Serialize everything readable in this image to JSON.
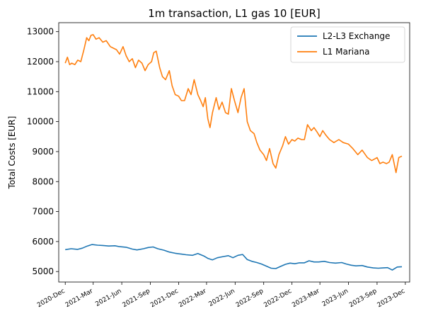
{
  "chart_data": {
    "type": "line",
    "title": "1m transaction, L1 gas 10 [EUR]",
    "xlabel": "",
    "ylabel": "Total Costs [EUR]",
    "x_tick_labels": [
      "2020-Dec",
      "2021-Mar",
      "2021-Jun",
      "2021-Sep",
      "2021-Dec",
      "2022-Mar",
      "2022-Jun",
      "2022-Sep",
      "2022-Dec",
      "2023-Mar",
      "2023-Jun",
      "2023-Sep",
      "2023-Dec"
    ],
    "y_ticks": [
      5000,
      6000,
      7000,
      8000,
      9000,
      10000,
      11000,
      12000,
      13000
    ],
    "ylim": [
      4650,
      13300
    ],
    "xlim": [
      "2020-11-10",
      "2023-12-15"
    ],
    "grid": false,
    "legend_position": "top-right",
    "series": [
      {
        "name": "L2-L3 Exchange",
        "color": "#1f77b4",
        "x": [
          "2020-12-01",
          "2020-12-20",
          "2021-01-10",
          "2021-01-25",
          "2021-02-10",
          "2021-02-25",
          "2021-03-15",
          "2021-04-01",
          "2021-04-20",
          "2021-05-10",
          "2021-05-25",
          "2021-06-15",
          "2021-07-05",
          "2021-07-20",
          "2021-08-10",
          "2021-08-25",
          "2021-09-10",
          "2021-09-25",
          "2021-10-15",
          "2021-11-01",
          "2021-11-20",
          "2021-12-10",
          "2021-12-25",
          "2022-01-15",
          "2022-02-01",
          "2022-02-20",
          "2022-03-05",
          "2022-03-20",
          "2022-04-05",
          "2022-04-25",
          "2022-05-10",
          "2022-05-25",
          "2022-06-10",
          "2022-06-25",
          "2022-07-10",
          "2022-07-25",
          "2022-08-10",
          "2022-08-25",
          "2022-09-10",
          "2022-09-25",
          "2022-10-10",
          "2022-10-25",
          "2022-11-10",
          "2022-11-25",
          "2022-12-10",
          "2022-12-25",
          "2023-01-10",
          "2023-01-25",
          "2023-02-10",
          "2023-02-25",
          "2023-03-15",
          "2023-04-01",
          "2023-04-20",
          "2023-05-10",
          "2023-05-25",
          "2023-06-10",
          "2023-06-25",
          "2023-07-15",
          "2023-08-01",
          "2023-08-20",
          "2023-09-05",
          "2023-09-20",
          "2023-10-05",
          "2023-10-20",
          "2023-11-05",
          "2023-11-20"
        ],
        "values": [
          5730,
          5760,
          5740,
          5780,
          5850,
          5900,
          5880,
          5870,
          5850,
          5860,
          5830,
          5810,
          5750,
          5720,
          5760,
          5800,
          5820,
          5760,
          5710,
          5650,
          5610,
          5580,
          5560,
          5540,
          5600,
          5520,
          5440,
          5390,
          5460,
          5500,
          5530,
          5460,
          5540,
          5570,
          5400,
          5340,
          5300,
          5250,
          5180,
          5110,
          5100,
          5170,
          5240,
          5280,
          5260,
          5290,
          5290,
          5360,
          5320,
          5320,
          5340,
          5300,
          5280,
          5300,
          5250,
          5210,
          5190,
          5200,
          5150,
          5120,
          5110,
          5120,
          5130,
          5050,
          5150,
          5160
        ]
      },
      {
        "name": "L1 Mariana",
        "color": "#ff7f0e",
        "x": [
          "2020-12-01",
          "2020-12-08",
          "2020-12-15",
          "2020-12-22",
          "2021-01-01",
          "2021-01-10",
          "2021-01-20",
          "2021-01-30",
          "2021-02-08",
          "2021-02-15",
          "2021-02-22",
          "2021-03-01",
          "2021-03-10",
          "2021-03-20",
          "2021-04-01",
          "2021-04-12",
          "2021-04-25",
          "2021-05-05",
          "2021-05-15",
          "2021-05-25",
          "2021-06-05",
          "2021-06-15",
          "2021-06-25",
          "2021-07-05",
          "2021-07-15",
          "2021-07-25",
          "2021-08-05",
          "2021-08-15",
          "2021-08-25",
          "2021-09-05",
          "2021-09-12",
          "2021-09-20",
          "2021-10-01",
          "2021-10-10",
          "2021-10-20",
          "2021-11-01",
          "2021-11-10",
          "2021-11-20",
          "2021-12-01",
          "2021-12-10",
          "2021-12-20",
          "2022-01-01",
          "2022-01-10",
          "2022-01-20",
          "2022-02-01",
          "2022-02-10",
          "2022-02-18",
          "2022-02-25",
          "2022-03-05",
          "2022-03-12",
          "2022-03-20",
          "2022-04-01",
          "2022-04-10",
          "2022-04-20",
          "2022-05-01",
          "2022-05-10",
          "2022-05-20",
          "2022-05-30",
          "2022-06-10",
          "2022-06-20",
          "2022-06-30",
          "2022-07-10",
          "2022-07-20",
          "2022-08-01",
          "2022-08-10",
          "2022-08-20",
          "2022-09-01",
          "2022-09-10",
          "2022-09-20",
          "2022-10-01",
          "2022-10-10",
          "2022-10-20",
          "2022-11-01",
          "2022-11-10",
          "2022-11-20",
          "2022-12-01",
          "2022-12-10",
          "2022-12-20",
          "2023-01-01",
          "2023-01-10",
          "2023-01-20",
          "2023-02-01",
          "2023-02-10",
          "2023-02-20",
          "2023-03-01",
          "2023-03-10",
          "2023-03-20",
          "2023-04-01",
          "2023-04-15",
          "2023-05-01",
          "2023-05-15",
          "2023-06-01",
          "2023-06-15",
          "2023-07-01",
          "2023-07-15",
          "2023-08-01",
          "2023-08-15",
          "2023-09-01",
          "2023-09-10",
          "2023-09-20",
          "2023-10-01",
          "2023-10-10",
          "2023-10-20",
          "2023-11-01",
          "2023-11-10",
          "2023-11-20"
        ],
        "values": [
          11950,
          12150,
          11900,
          11950,
          11900,
          12050,
          12000,
          12400,
          12800,
          12700,
          12880,
          12900,
          12750,
          12800,
          12650,
          12700,
          12500,
          12450,
          12400,
          12250,
          12500,
          12200,
          12000,
          12100,
          11800,
          12050,
          11950,
          11700,
          11900,
          12000,
          12300,
          12350,
          11800,
          11500,
          11400,
          11700,
          11200,
          10900,
          10850,
          10700,
          10700,
          11100,
          10900,
          11400,
          10900,
          10700,
          10500,
          10800,
          10100,
          9800,
          10300,
          10800,
          10400,
          10650,
          10300,
          10250,
          11100,
          10700,
          10300,
          10800,
          11100,
          10000,
          9700,
          9600,
          9300,
          9050,
          8900,
          8700,
          9100,
          8600,
          8450,
          8900,
          9200,
          9500,
          9250,
          9400,
          9350,
          9450,
          9400,
          9400,
          9900,
          9700,
          9800,
          9650,
          9500,
          9700,
          9550,
          9400,
          9300,
          9400,
          9300,
          9250,
          9100,
          8900,
          9050,
          8800,
          8700,
          8800,
          8600,
          8650,
          8600,
          8650,
          8900,
          8300,
          8800,
          8850
        ]
      }
    ]
  }
}
